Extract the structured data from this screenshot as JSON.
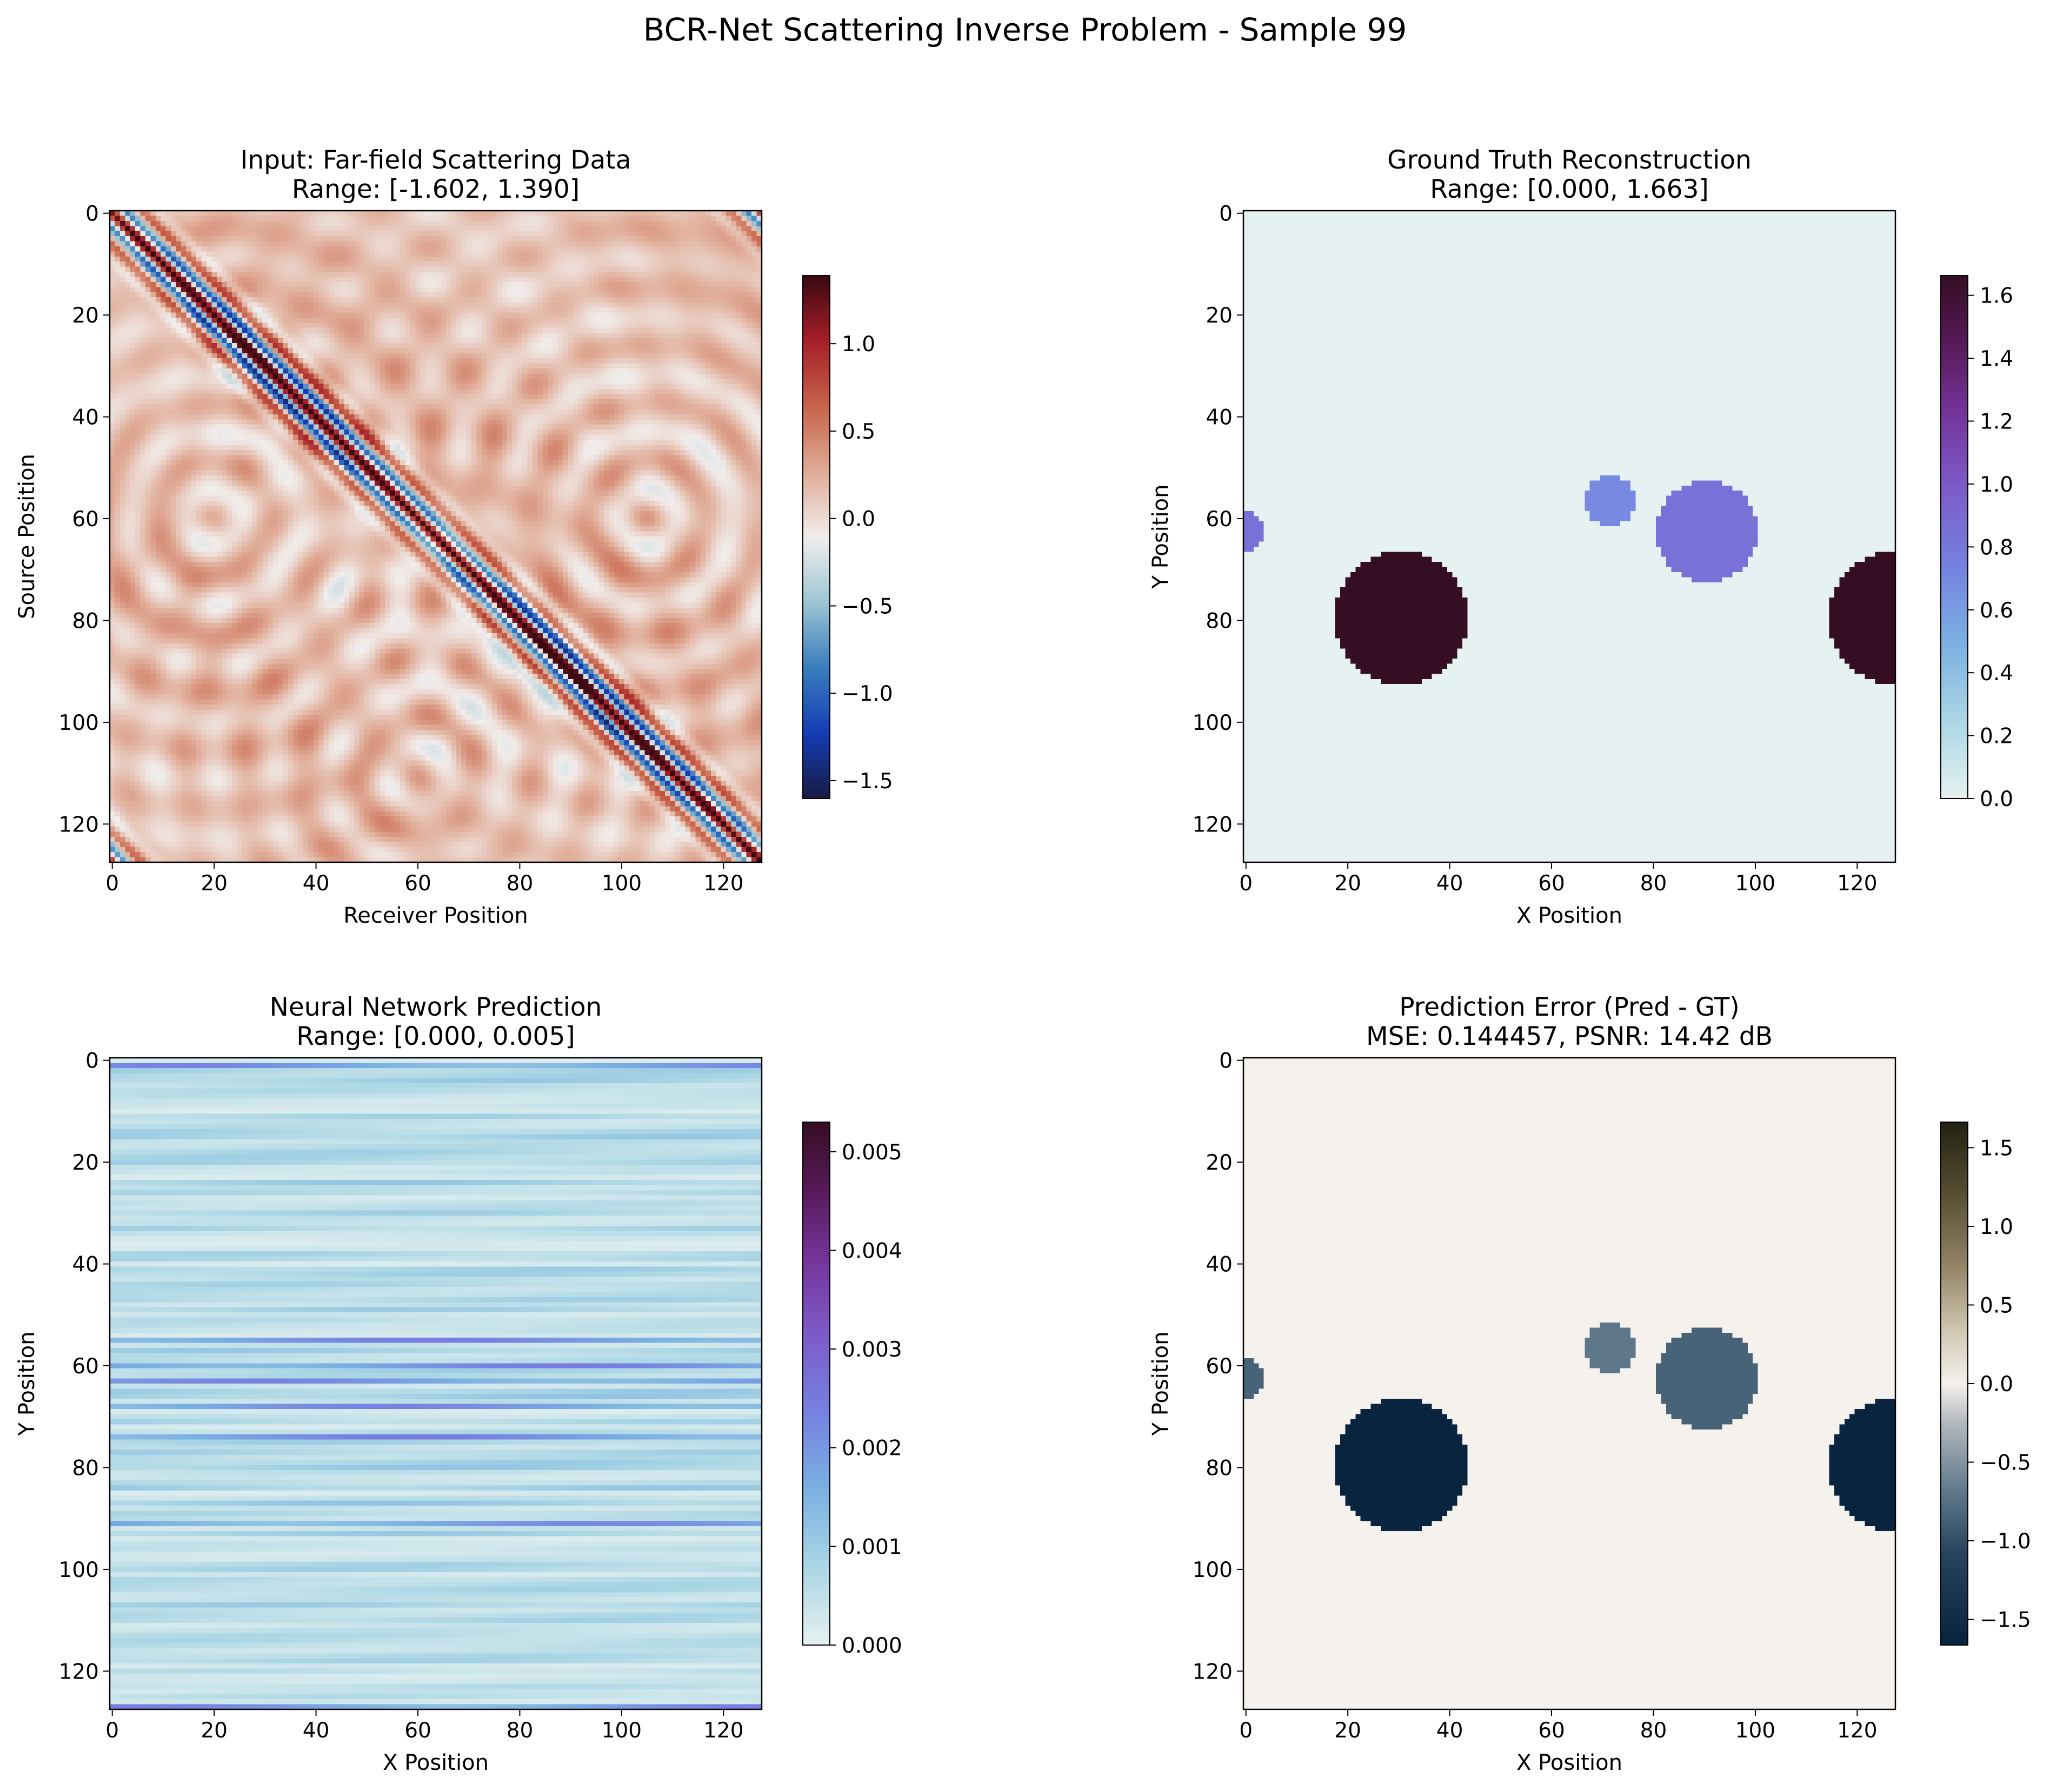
{
  "suptitle": "BCR-Net Scattering Inverse Problem - Sample 99",
  "chart_data": [
    {
      "type": "heatmap",
      "title": "Input: Far-field Scattering Data",
      "subtitle": "Range: [-1.602, 1.390]",
      "xlabel": "Receiver Position",
      "ylabel": "Source Position",
      "grid_size": [
        128,
        128
      ],
      "xlim": [
        0,
        127
      ],
      "ylim": [
        127,
        0
      ],
      "xticks": [
        "0",
        "20",
        "40",
        "60",
        "80",
        "100",
        "120"
      ],
      "yticks": [
        "0",
        "20",
        "40",
        "60",
        "80",
        "100",
        "120"
      ],
      "value_range": [
        -1.602,
        1.39
      ],
      "colormap": "balance (blue–white–red)",
      "colorbar": {
        "min": -1.602,
        "max": 1.39,
        "ticks": [
          "1.0",
          "0.5",
          "0.0",
          "−0.5",
          "−1.0",
          "−1.5"
        ]
      },
      "pattern": "strong oscillating anti-diagonal band from (0,0) to (127,127) with concentric ring interference lobes"
    },
    {
      "type": "heatmap",
      "title": "Ground Truth Reconstruction",
      "subtitle": "Range: [0.000, 1.663]",
      "xlabel": "X Position",
      "ylabel": "Y Position",
      "grid_size": [
        128,
        128
      ],
      "xlim": [
        0,
        127
      ],
      "ylim": [
        127,
        0
      ],
      "xticks": [
        "0",
        "20",
        "40",
        "60",
        "80",
        "100",
        "120"
      ],
      "yticks": [
        "0",
        "20",
        "40",
        "60",
        "80",
        "100",
        "120"
      ],
      "value_range": [
        0.0,
        1.663
      ],
      "colormap": "dense (light cyan → purple → dark maroon)",
      "colorbar": {
        "min": 0.0,
        "max": 1.663,
        "ticks": [
          "1.6",
          "1.4",
          "1.2",
          "1.0",
          "0.8",
          "0.6",
          "0.4",
          "0.2",
          "0.0"
        ]
      },
      "scatterers": [
        {
          "cx": 31,
          "cy": 80,
          "r": 13,
          "value": 1.663
        },
        {
          "cx": 128,
          "cy": 80,
          "r": 13,
          "value": 1.663
        },
        {
          "cx": 91,
          "cy": 63,
          "r": 10,
          "value": 0.85
        },
        {
          "cx": 0,
          "cy": 63,
          "r": 4,
          "value": 0.85
        },
        {
          "cx": 72,
          "cy": 57,
          "r": 5,
          "value": 0.7
        }
      ]
    },
    {
      "type": "heatmap",
      "title": "Neural Network Prediction",
      "subtitle": "Range: [0.000, 0.005]",
      "xlabel": "X Position",
      "ylabel": "Y Position",
      "grid_size": [
        128,
        128
      ],
      "xlim": [
        0,
        127
      ],
      "ylim": [
        127,
        0
      ],
      "xticks": [
        "0",
        "20",
        "40",
        "60",
        "80",
        "100",
        "120"
      ],
      "yticks": [
        "0",
        "20",
        "40",
        "60",
        "80",
        "100",
        "120"
      ],
      "value_range": [
        0.0,
        0.0053
      ],
      "colormap": "dense (light cyan → purple → dark maroon)",
      "colorbar": {
        "min": 0.0,
        "max": 0.0053,
        "ticks": [
          "0.005",
          "0.004",
          "0.003",
          "0.002",
          "0.001",
          "0.000"
        ]
      },
      "pattern": "horizontal streaks; strongest rows near y = 1, 55, 60, 63, 68, 74, 91, 127"
    },
    {
      "type": "heatmap",
      "title": "Prediction Error (Pred - GT)",
      "subtitle": "MSE: 0.144457, PSNR: 14.42 dB",
      "xlabel": "X Position",
      "ylabel": "Y Position",
      "grid_size": [
        128,
        128
      ],
      "xlim": [
        0,
        127
      ],
      "ylim": [
        127,
        0
      ],
      "xticks": [
        "0",
        "20",
        "40",
        "60",
        "80",
        "100",
        "120"
      ],
      "yticks": [
        "0",
        "20",
        "40",
        "60",
        "80",
        "100",
        "120"
      ],
      "value_range": [
        -1.663,
        1.663
      ],
      "colormap": "diff (navy – white – olive)",
      "colorbar": {
        "min": -1.663,
        "max": 1.663,
        "ticks": [
          "1.5",
          "1.0",
          "0.5",
          "0.0",
          "−0.5",
          "−1.0",
          "−1.5"
        ]
      },
      "scatterers": [
        {
          "cx": 31,
          "cy": 80,
          "r": 13,
          "value": -1.66
        },
        {
          "cx": 128,
          "cy": 80,
          "r": 13,
          "value": -1.66
        },
        {
          "cx": 91,
          "cy": 63,
          "r": 10,
          "value": -0.85
        },
        {
          "cx": 0,
          "cy": 63,
          "r": 4,
          "value": -0.85
        },
        {
          "cx": 72,
          "cy": 57,
          "r": 5,
          "value": -0.7
        }
      ]
    }
  ]
}
